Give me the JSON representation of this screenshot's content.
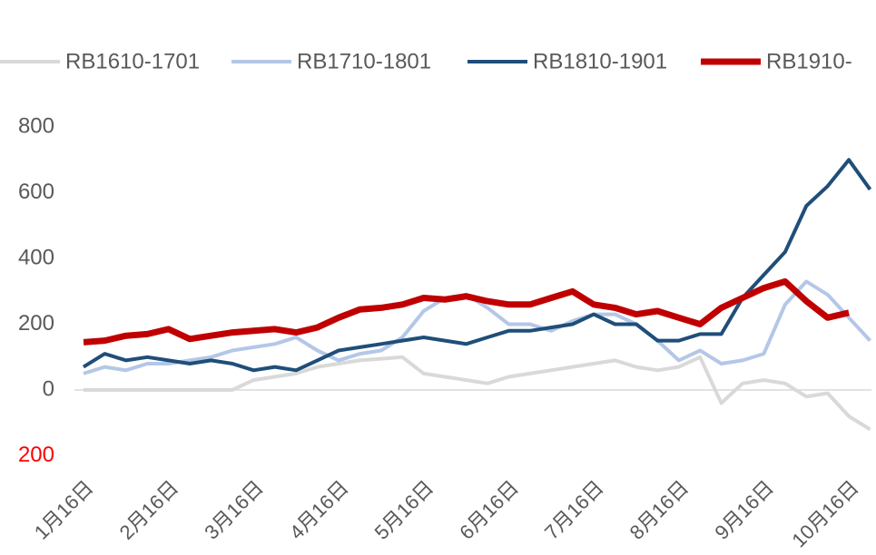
{
  "chart_data": {
    "type": "line",
    "categories": [
      "1月16日",
      null,
      null,
      null,
      "2月16日",
      null,
      null,
      null,
      "3月16日",
      null,
      null,
      null,
      "4月16日",
      null,
      null,
      null,
      "5月16日",
      null,
      null,
      null,
      "6月16日",
      null,
      null,
      null,
      "7月16日",
      null,
      null,
      null,
      "8月16日",
      null,
      null,
      null,
      "9月16日",
      null,
      null,
      null,
      "10月16日",
      null
    ],
    "series": [
      {
        "name": "RB1610-1701",
        "color": "#d9d9d9",
        "width": 4,
        "values": [
          0,
          0,
          0,
          0,
          0,
          0,
          0,
          0,
          30,
          40,
          50,
          70,
          80,
          90,
          95,
          100,
          50,
          40,
          30,
          20,
          40,
          50,
          60,
          70,
          80,
          90,
          70,
          60,
          70,
          100,
          -40,
          20,
          30,
          20,
          -20,
          -10,
          -80,
          -120
        ]
      },
      {
        "name": "RB1710-1801",
        "color": "#b4c7e7",
        "width": 4,
        "values": [
          50,
          70,
          60,
          80,
          80,
          90,
          100,
          120,
          130,
          140,
          160,
          120,
          90,
          110,
          120,
          160,
          240,
          280,
          290,
          250,
          200,
          200,
          180,
          210,
          230,
          230,
          200,
          150,
          90,
          120,
          80,
          90,
          110,
          260,
          330,
          290,
          220,
          150
        ]
      },
      {
        "name": "RB1810-1901",
        "color": "#1f4e79",
        "width": 4,
        "values": [
          70,
          110,
          90,
          100,
          90,
          80,
          90,
          80,
          60,
          70,
          60,
          90,
          120,
          130,
          140,
          150,
          160,
          150,
          140,
          160,
          180,
          180,
          190,
          200,
          230,
          200,
          200,
          150,
          150,
          170,
          170,
          280,
          350,
          420,
          560,
          620,
          700,
          610
        ]
      },
      {
        "name": "RB1910-",
        "color": "#c00000",
        "width": 7,
        "values": [
          145,
          150,
          165,
          170,
          185,
          155,
          165,
          175,
          180,
          185,
          175,
          190,
          220,
          245,
          250,
          260,
          280,
          275,
          285,
          270,
          260,
          260,
          280,
          300,
          260,
          250,
          230,
          240,
          220,
          200,
          250,
          280,
          310,
          330,
          270,
          220,
          235,
          null
        ]
      }
    ],
    "ylim": [
      -200,
      800
    ],
    "yticks": [
      {
        "value": -200,
        "label": "200",
        "color": "#ff0000"
      },
      0,
      200,
      400,
      600,
      800
    ],
    "grid": false
  }
}
